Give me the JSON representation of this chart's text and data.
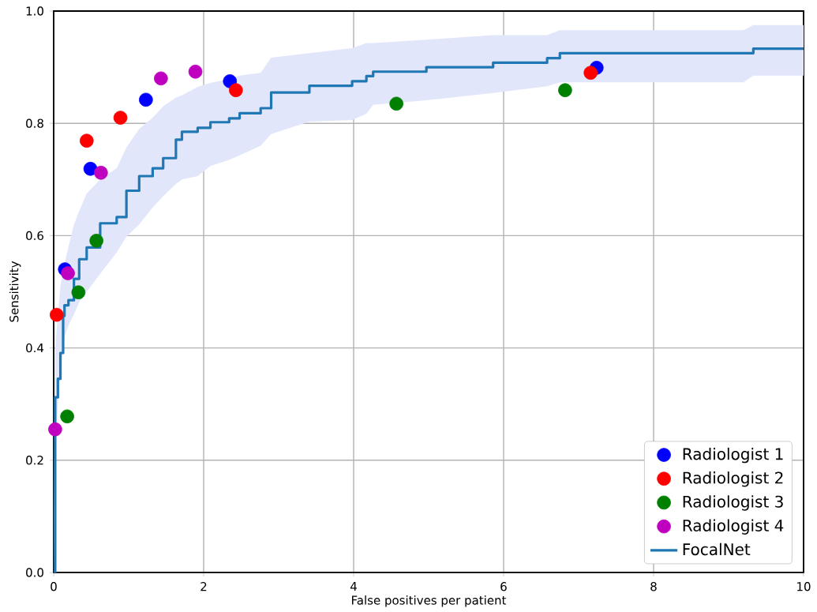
{
  "chart_data": {
    "type": "scatter",
    "xlabel": "False positives per patient",
    "ylabel": "Sensitivity",
    "xlim": [
      0,
      10
    ],
    "ylim": [
      0,
      1
    ],
    "xticks": [
      0,
      2,
      4,
      6,
      8,
      10
    ],
    "yticks": [
      {
        "value": 0,
        "label": "0.0"
      },
      {
        "value": 0.2,
        "label": "0.2"
      },
      {
        "value": 0.4,
        "label": "0.4"
      },
      {
        "value": 0.6,
        "label": "0.6"
      },
      {
        "value": 0.8,
        "label": "0.8"
      },
      {
        "value": 1,
        "label": "1.0"
      }
    ],
    "grid": true,
    "legend": "bottom right",
    "marker": "circle",
    "series": [
      {
        "name": "Radiologist 1",
        "color": "#0000ff",
        "x": [
          0.15,
          0.49,
          1.23,
          2.35,
          7.24
        ],
        "values": [
          0.54,
          0.719,
          0.842,
          0.875,
          0.899
        ]
      },
      {
        "name": "Radiologist 2",
        "color": "#ff0000",
        "x": [
          0.04,
          0.44,
          0.89,
          2.43,
          7.16
        ],
        "values": [
          0.459,
          0.769,
          0.81,
          0.859,
          0.89
        ]
      },
      {
        "name": "Radiologist 3",
        "color": "#008000",
        "x": [
          0.18,
          0.33,
          0.57,
          4.57,
          6.82
        ],
        "values": [
          0.278,
          0.499,
          0.591,
          0.835,
          0.859
        ]
      },
      {
        "name": "Radiologist 4",
        "color": "#bf00bf",
        "x": [
          0.02,
          0.19,
          0.63,
          1.43,
          1.89
        ],
        "values": [
          0.255,
          0.533,
          0.712,
          0.88,
          0.892
        ]
      },
      {
        "name": "FocalNet",
        "type": "step",
        "color": "#1f77b4",
        "marker": "none",
        "x": [
          0,
          0.02,
          0.056,
          0.09,
          0.126,
          0.144,
          0.197,
          0.27,
          0.34,
          0.44,
          0.62,
          0.84,
          0.97,
          1.14,
          1.32,
          1.46,
          1.63,
          1.71,
          1.92,
          2.09,
          2.34,
          2.48,
          2.76,
          2.9,
          3.41,
          3.98,
          4.17,
          4.26,
          4.97,
          5.86,
          6.58,
          6.75,
          9.2,
          9.33,
          10
        ],
        "values": [
          0,
          0.312,
          0.345,
          0.391,
          0.457,
          0.476,
          0.485,
          0.523,
          0.558,
          0.579,
          0.622,
          0.633,
          0.68,
          0.706,
          0.72,
          0.738,
          0.771,
          0.785,
          0.792,
          0.802,
          0.809,
          0.818,
          0.827,
          0.855,
          0.867,
          0.875,
          0.884,
          0.892,
          0.9,
          0.908,
          0.916,
          0.925,
          0.925,
          0.933,
          0.933
        ],
        "upper": [
          0.05,
          0.4,
          0.46,
          0.51,
          0.537,
          0.55,
          0.58,
          0.62,
          0.644,
          0.675,
          0.7,
          0.72,
          0.757,
          0.79,
          0.81,
          0.83,
          0.846,
          0.85,
          0.865,
          0.872,
          0.879,
          0.885,
          0.89,
          0.917,
          0.925,
          0.934,
          0.943,
          0.943,
          0.949,
          0.957,
          0.957,
          0.966,
          0.966,
          0.975,
          0.975
        ],
        "lower": [
          0,
          0.2,
          0.3,
          0.36,
          0.4,
          0.42,
          0.44,
          0.46,
          0.481,
          0.5,
          0.532,
          0.57,
          0.598,
          0.62,
          0.65,
          0.67,
          0.692,
          0.7,
          0.706,
          0.724,
          0.735,
          0.743,
          0.76,
          0.781,
          0.803,
          0.806,
          0.817,
          0.833,
          0.841,
          0.854,
          0.866,
          0.873,
          0.873,
          0.885,
          0.885
        ]
      }
    ]
  }
}
